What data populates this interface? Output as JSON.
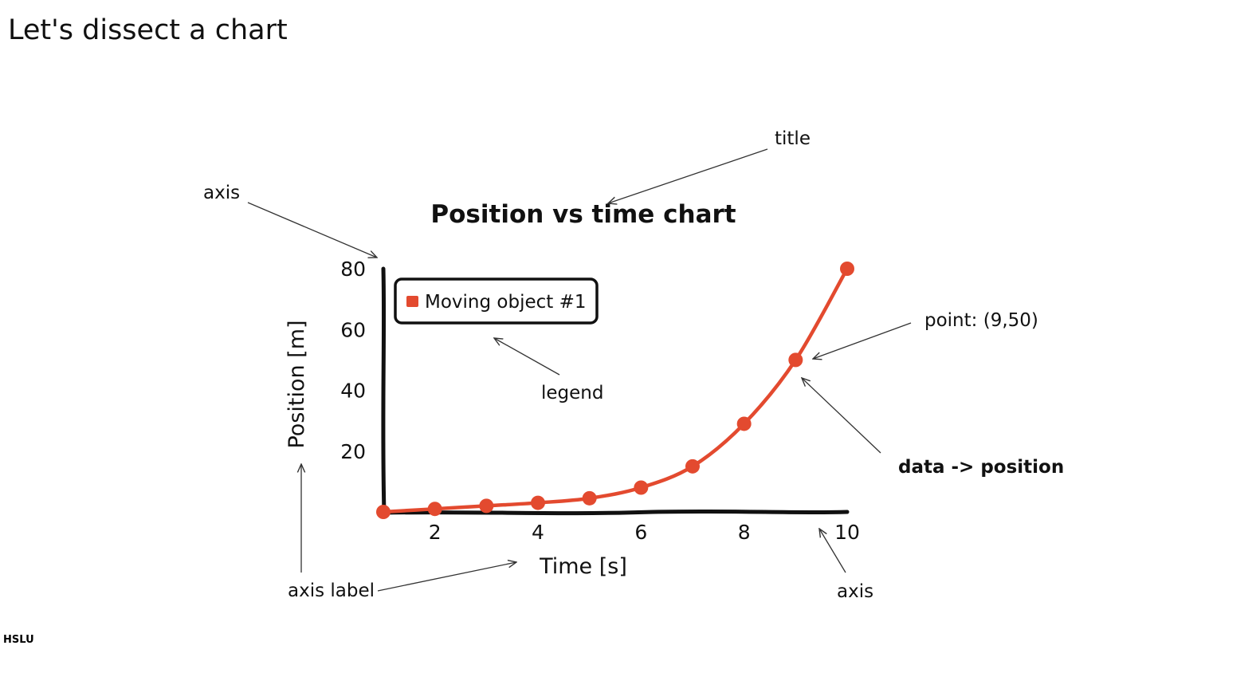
{
  "slide": {
    "title": "Let's dissect a chart",
    "footer_logo": "HSLU"
  },
  "annotations": {
    "title": "title",
    "axis_left": "axis",
    "legend": "legend",
    "point": "point: (9,50)",
    "data_position": "data -> position",
    "axis_label": "axis label",
    "axis_bottom": "axis"
  },
  "colors": {
    "series": "#e34a2f",
    "axis": "#111111",
    "text": "#111111"
  },
  "chart_data": {
    "type": "line",
    "title": "Position vs time chart",
    "xlabel": "Time [s]",
    "ylabel": "Position [m]",
    "xlim": [
      1,
      10
    ],
    "ylim": [
      0,
      80
    ],
    "xticks": [
      "2",
      "4",
      "6",
      "8",
      "10"
    ],
    "yticks": [
      "20",
      "40",
      "60",
      "80"
    ],
    "legend_position": "top-left",
    "series": [
      {
        "name": "Moving object #1",
        "x": [
          1,
          2,
          3,
          4,
          5,
          6,
          7,
          8,
          9,
          10
        ],
        "y": [
          0,
          1,
          2,
          3,
          4.5,
          8,
          15,
          29,
          50,
          80
        ]
      }
    ]
  }
}
